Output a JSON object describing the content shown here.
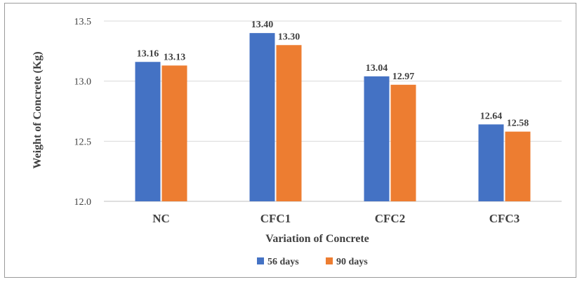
{
  "chart_data": {
    "type": "bar",
    "title": "",
    "categories": [
      "NC",
      "CFC1",
      "CFC2",
      "CFC3"
    ],
    "series": [
      {
        "name": "56 days",
        "values": [
          13.16,
          13.4,
          13.04,
          12.64
        ],
        "color": "#4472C4"
      },
      {
        "name": "90 days",
        "values": [
          13.13,
          13.3,
          12.97,
          12.58
        ],
        "color": "#ED7D31"
      }
    ],
    "data_labels": [
      [
        "13.16",
        "13.40",
        "13.04",
        "12.64"
      ],
      [
        "13.13",
        "13.30",
        "12.97",
        "12.58"
      ]
    ],
    "xlabel": "Variation of Concrete",
    "ylabel": "Weight of Concrete (Kg)",
    "ylim": [
      12.0,
      13.5
    ],
    "yticks": [
      "12.0",
      "12.5",
      "13.0",
      "13.5"
    ],
    "grid": true,
    "legend_position": "bottom",
    "gridline_color": "#d9d9d9",
    "axis_color": "#bfbfbf"
  }
}
